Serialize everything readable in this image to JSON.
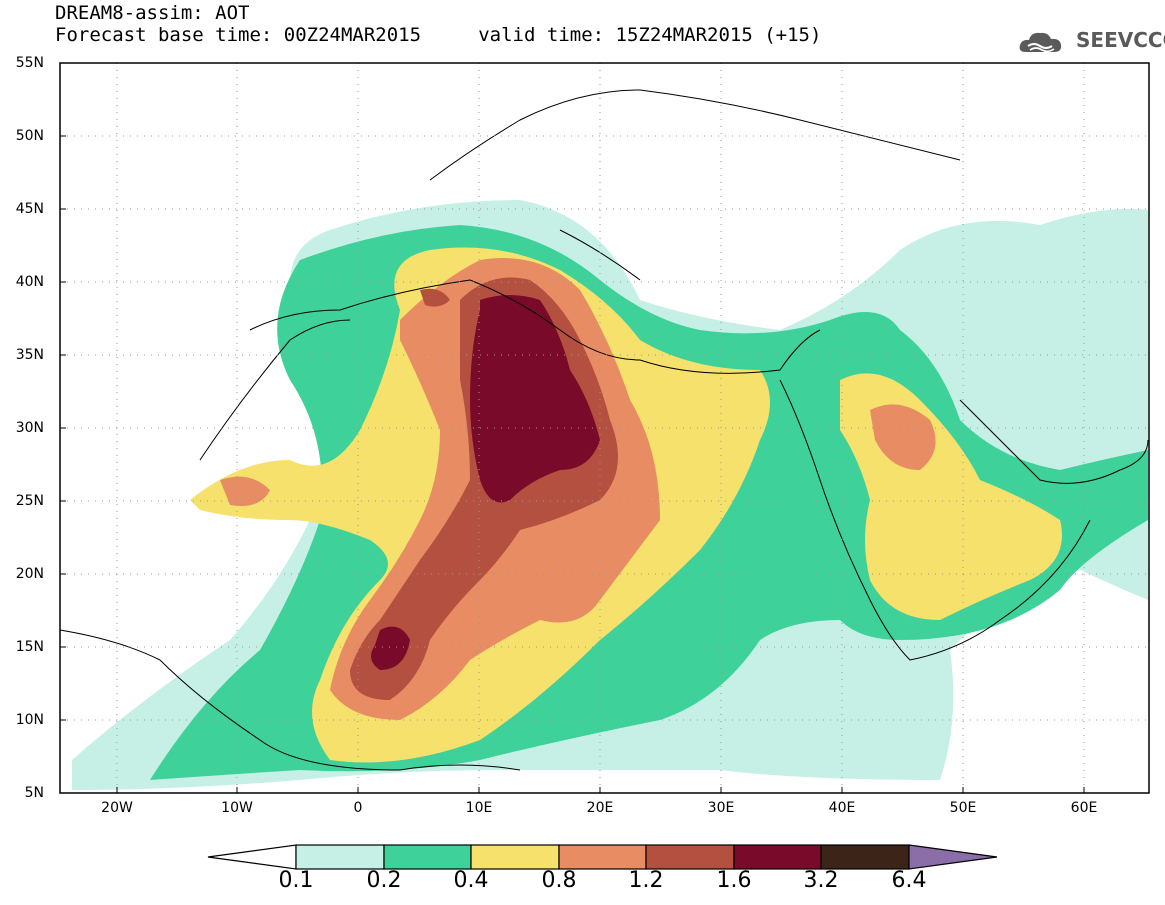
{
  "header": {
    "title_line1": "DREAM8-assim: AOT",
    "title_line2": "Forecast base time: 00Z24MAR2015     valid time: 15Z24MAR2015 (+15)",
    "logo_text": "SEEVCCC",
    "logo_icon": "cloud-icon"
  },
  "map": {
    "lat_labels": [
      "55N",
      "50N",
      "45N",
      "40N",
      "35N",
      "30N",
      "25N",
      "20N",
      "15N",
      "10N",
      "5N"
    ],
    "lon_labels": [
      "20W",
      "10W",
      "0",
      "10E",
      "20E",
      "30E",
      "40E",
      "50E",
      "60E"
    ]
  },
  "colorbar": {
    "labels": [
      "0.1",
      "0.2",
      "0.4",
      "0.8",
      "1.2",
      "1.6",
      "3.2",
      "6.4"
    ],
    "colors": [
      "#ffffff",
      "#c6f0e6",
      "#3fd19a",
      "#f5e16b",
      "#e88c63",
      "#b4503f",
      "#7a0a2a",
      "#3d2418",
      "#8b6da8"
    ]
  }
}
